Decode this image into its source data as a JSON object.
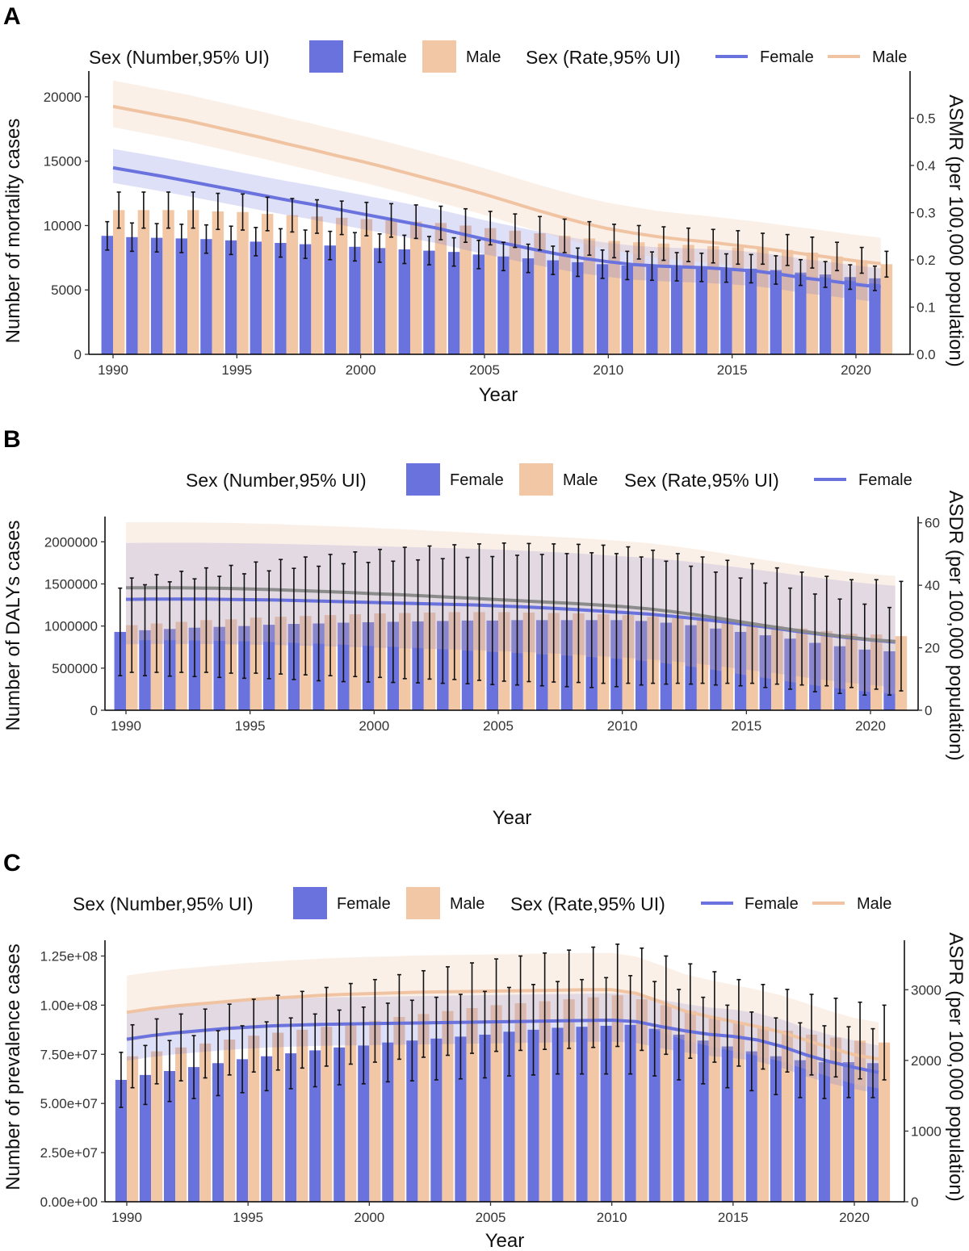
{
  "figure": {
    "legend": {
      "number_title": "Sex (Number,95% UI)",
      "rate_title": "Sex (Rate,95% UI)",
      "female_label": "Female",
      "male_label": "Male"
    },
    "x_label": "Year",
    "x_ticks": [
      "1990",
      "1995",
      "2000",
      "2005",
      "2010",
      "2015",
      "2020"
    ]
  },
  "colors": {
    "female_bar": "#6a72dd",
    "male_bar": "#f2c7a5",
    "female_line": "#6a72dd",
    "male_line": "#f0c4a2",
    "grey_line": "#8c8c8c",
    "error_bar": "#111111"
  },
  "chart_data": [
    {
      "panel": "A",
      "type": "bar",
      "ylabel": "Number of mortality cases",
      "y2label": "ASMR (per 100,000 population)",
      "ylim": [
        0,
        22000
      ],
      "y2lim": [
        0,
        0.6
      ],
      "y_ticks": [
        "0",
        "5000",
        "10000",
        "15000",
        "20000"
      ],
      "y2_ticks": [
        "0.0",
        "0.1",
        "0.2",
        "0.3",
        "0.4",
        "0.5"
      ],
      "years": [
        1990,
        1991,
        1992,
        1993,
        1994,
        1995,
        1996,
        1997,
        1998,
        1999,
        2000,
        2001,
        2002,
        2003,
        2004,
        2005,
        2006,
        2007,
        2008,
        2009,
        2010,
        2011,
        2012,
        2013,
        2014,
        2015,
        2016,
        2017,
        2018,
        2019,
        2020,
        2021
      ],
      "bar_series": [
        {
          "name": "Female",
          "values": [
            9200,
            9100,
            9050,
            9000,
            8950,
            8850,
            8750,
            8650,
            8550,
            8450,
            8350,
            8250,
            8150,
            8050,
            7950,
            7750,
            7600,
            7450,
            7300,
            7150,
            7000,
            6900,
            6850,
            6800,
            6750,
            6700,
            6650,
            6550,
            6350,
            6200,
            6000,
            5900
          ],
          "err": [
            1100,
            1100,
            1100,
            1100,
            1100,
            1100,
            1100,
            1100,
            1100,
            1100,
            1100,
            1100,
            1100,
            1100,
            1100,
            1100,
            1100,
            1100,
            1100,
            1100,
            1100,
            1100,
            1100,
            1100,
            1100,
            1100,
            1100,
            1100,
            1000,
            1000,
            950,
            950
          ]
        },
        {
          "name": "Male",
          "values": [
            11200,
            11200,
            11200,
            11200,
            11100,
            11050,
            10900,
            10800,
            10700,
            10600,
            10500,
            10400,
            10300,
            10200,
            10000,
            9800,
            9600,
            9400,
            9200,
            9000,
            8800,
            8700,
            8600,
            8500,
            8400,
            8300,
            8200,
            8100,
            7900,
            7600,
            7300,
            7000
          ],
          "err": [
            1400,
            1400,
            1400,
            1400,
            1400,
            1400,
            1300,
            1300,
            1300,
            1300,
            1300,
            1300,
            1300,
            1300,
            1300,
            1300,
            1300,
            1300,
            1300,
            1300,
            1300,
            1300,
            1300,
            1300,
            1300,
            1300,
            1200,
            1200,
            1200,
            1100,
            1000,
            1000
          ]
        }
      ],
      "line_series": [
        {
          "name": "Female",
          "values": [
            0.395,
            0.386,
            0.377,
            0.367,
            0.357,
            0.347,
            0.337,
            0.327,
            0.318,
            0.308,
            0.298,
            0.288,
            0.278,
            0.268,
            0.256,
            0.244,
            0.233,
            0.222,
            0.212,
            0.203,
            0.196,
            0.19,
            0.187,
            0.185,
            0.183,
            0.18,
            0.176,
            0.169,
            0.161,
            0.155,
            0.148,
            0.142
          ],
          "band": 0.04
        },
        {
          "name": "Male",
          "values": [
            0.525,
            0.515,
            0.505,
            0.495,
            0.483,
            0.471,
            0.459,
            0.446,
            0.434,
            0.421,
            0.409,
            0.396,
            0.382,
            0.368,
            0.354,
            0.339,
            0.323,
            0.307,
            0.292,
            0.278,
            0.266,
            0.257,
            0.249,
            0.243,
            0.238,
            0.232,
            0.226,
            0.219,
            0.212,
            0.205,
            0.198,
            0.192
          ],
          "band": 0.055
        }
      ]
    },
    {
      "panel": "B",
      "type": "bar",
      "ylabel": "Number of DALYs cases",
      "y2label": "ASDR (per 100,000 population)",
      "ylim": [
        0,
        2300000
      ],
      "y2lim": [
        0,
        62
      ],
      "y_ticks": [
        "0",
        "500000",
        "1000000",
        "1500000",
        "2000000"
      ],
      "y2_ticks": [
        "0",
        "20",
        "40",
        "60"
      ],
      "years": [
        1990,
        1991,
        1992,
        1993,
        1994,
        1995,
        1996,
        1997,
        1998,
        1999,
        2000,
        2001,
        2002,
        2003,
        2004,
        2005,
        2006,
        2007,
        2008,
        2009,
        2010,
        2011,
        2012,
        2013,
        2014,
        2015,
        2016,
        2017,
        2018,
        2019,
        2020,
        2021
      ],
      "bar_series": [
        {
          "name": "Female",
          "values": [
            930000,
            950000,
            965000,
            980000,
            990000,
            1000000,
            1015000,
            1025000,
            1030000,
            1040000,
            1045000,
            1050000,
            1055000,
            1060000,
            1065000,
            1065000,
            1070000,
            1070000,
            1070000,
            1070000,
            1070000,
            1060000,
            1040000,
            1010000,
            970000,
            930000,
            890000,
            850000,
            800000,
            760000,
            720000,
            700000
          ],
          "err": [
            520000,
            540000,
            560000,
            580000,
            600000,
            620000,
            640000,
            660000,
            680000,
            700000,
            710000,
            720000,
            730000,
            740000,
            750000,
            760000,
            770000,
            780000,
            790000,
            800000,
            790000,
            760000,
            730000,
            700000,
            670000,
            640000,
            620000,
            600000,
            580000,
            560000,
            540000,
            520000
          ]
        },
        {
          "name": "Male",
          "values": [
            1010000,
            1030000,
            1050000,
            1070000,
            1080000,
            1100000,
            1110000,
            1120000,
            1130000,
            1140000,
            1150000,
            1155000,
            1160000,
            1165000,
            1165000,
            1165000,
            1160000,
            1155000,
            1150000,
            1140000,
            1130000,
            1110000,
            1090000,
            1070000,
            1050000,
            1030000,
            1000000,
            970000,
            940000,
            910000,
            900000,
            880000
          ],
          "err": [
            560000,
            580000,
            600000,
            620000,
            640000,
            660000,
            680000,
            700000,
            720000,
            740000,
            760000,
            780000,
            790000,
            800000,
            810000,
            820000,
            820000,
            820000,
            820000,
            820000,
            810000,
            790000,
            770000,
            750000,
            730000,
            710000,
            690000,
            670000,
            650000,
            640000,
            650000,
            650000
          ]
        }
      ],
      "line_series": [
        {
          "name": "Female",
          "values": [
            35.5,
            35.6,
            35.6,
            35.6,
            35.5,
            35.4,
            35.3,
            35.1,
            34.9,
            34.7,
            34.5,
            34.3,
            34.1,
            33.9,
            33.7,
            33.4,
            33.1,
            32.7,
            32.3,
            31.8,
            31.3,
            30.8,
            30.1,
            29.3,
            28.4,
            27.4,
            26.4,
            25.3,
            24.3,
            23.3,
            22.5,
            21.8
          ],
          "band": 18
        },
        {
          "name": "Male",
          "values": [
            39.2,
            39.2,
            39.2,
            39.1,
            39.0,
            38.8,
            38.6,
            38.3,
            38.0,
            37.7,
            37.3,
            37.0,
            36.6,
            36.2,
            35.8,
            35.4,
            35.0,
            34.6,
            34.2,
            33.7,
            33.2,
            32.5,
            31.6,
            30.5,
            29.3,
            28.0,
            26.8,
            25.6,
            24.5,
            23.5,
            22.6,
            22.0
          ],
          "band": 21
        }
      ]
    },
    {
      "panel": "C",
      "type": "bar",
      "ylabel": "Number of prevalence cases",
      "y2label": "ASPR (per 100,000 population)",
      "ylim": [
        0,
        133000000
      ],
      "y2lim": [
        0,
        3700
      ],
      "y_ticks": [
        "0.00e+00",
        "2.50e+07",
        "5.00e+07",
        "7.50e+07",
        "1.00e+08",
        "1.25e+08"
      ],
      "y2_ticks": [
        "0",
        "1000",
        "2000",
        "3000"
      ],
      "years": [
        1990,
        1991,
        1992,
        1993,
        1994,
        1995,
        1996,
        1997,
        1998,
        1999,
        2000,
        2001,
        2002,
        2003,
        2004,
        2005,
        2006,
        2007,
        2008,
        2009,
        2010,
        2011,
        2012,
        2013,
        2014,
        2015,
        2016,
        2017,
        2018,
        2019,
        2020,
        2021
      ],
      "bar_series": [
        {
          "name": "Female",
          "values": [
            62000000,
            64500000,
            66500000,
            68500000,
            70500000,
            72500000,
            74000000,
            75500000,
            77000000,
            78500000,
            79500000,
            81000000,
            82000000,
            83000000,
            84000000,
            85000000,
            86500000,
            87500000,
            88500000,
            89000000,
            89500000,
            90000000,
            88000000,
            85000000,
            82000000,
            79000000,
            76500000,
            74000000,
            72000000,
            71000000,
            71000000,
            70500000
          ],
          "err": [
            14000000,
            15000000,
            15500000,
            16000000,
            16500000,
            17000000,
            17500000,
            18000000,
            18500000,
            19000000,
            19500000,
            20000000,
            20500000,
            21000000,
            21500000,
            22000000,
            22500000,
            23000000,
            23500000,
            24000000,
            24500000,
            25000000,
            24000000,
            23000000,
            22000000,
            21000000,
            20000000,
            19500000,
            19000000,
            18500000,
            18000000,
            17500000
          ]
        },
        {
          "name": "Male",
          "values": [
            74000000,
            76500000,
            78500000,
            80500000,
            82500000,
            84500000,
            86000000,
            87500000,
            89000000,
            90500000,
            92000000,
            94000000,
            95500000,
            97000000,
            98500000,
            100000000,
            101000000,
            102000000,
            103000000,
            104000000,
            105000000,
            103000000,
            100000000,
            97000000,
            94000000,
            91000000,
            89000000,
            87000000,
            85000000,
            83500000,
            82000000,
            81000000
          ],
          "err": [
            16000000,
            16500000,
            17000000,
            17500000,
            18000000,
            18500000,
            19000000,
            19500000,
            20000000,
            20500000,
            21000000,
            21500000,
            22000000,
            22500000,
            23000000,
            23500000,
            24000000,
            24500000,
            25000000,
            25500000,
            26000000,
            26000000,
            25000000,
            24000000,
            23000000,
            22000000,
            21500000,
            21000000,
            20500000,
            20000000,
            19500000,
            19000000
          ]
        }
      ],
      "line_series": [
        {
          "name": "Female",
          "values": [
            2300,
            2350,
            2390,
            2420,
            2450,
            2470,
            2490,
            2500,
            2510,
            2515,
            2520,
            2525,
            2530,
            2535,
            2540,
            2545,
            2550,
            2555,
            2560,
            2565,
            2570,
            2550,
            2480,
            2420,
            2370,
            2340,
            2290,
            2200,
            2080,
            1980,
            1900,
            1830
          ],
          "band": 380
        },
        {
          "name": "Male",
          "values": [
            2680,
            2730,
            2770,
            2800,
            2830,
            2860,
            2880,
            2900,
            2920,
            2935,
            2945,
            2955,
            2965,
            2970,
            2975,
            2980,
            2985,
            2990,
            2995,
            3000,
            3000,
            2950,
            2830,
            2700,
            2620,
            2550,
            2480,
            2400,
            2290,
            2180,
            2080,
            2020
          ],
          "band": 520
        }
      ]
    }
  ]
}
